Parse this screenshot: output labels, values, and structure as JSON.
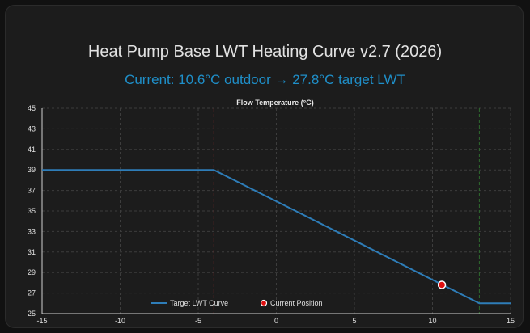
{
  "card": {
    "title": "Heat Pump Base LWT Heating Curve v2.7 (2026)",
    "subtitle": "Current: 10.6°C outdoor → 27.8°C target LWT"
  },
  "chart_data": {
    "type": "line",
    "title": "Flow Temperature (°C)",
    "xlabel": "",
    "ylabel": "",
    "xlim": [
      -15,
      15
    ],
    "ylim": [
      25,
      45
    ],
    "xticks": [
      -15,
      -10,
      -5,
      0,
      5,
      10,
      15
    ],
    "yticks": [
      25,
      27,
      29,
      31,
      33,
      35,
      37,
      39,
      41,
      43,
      45
    ],
    "grid": true,
    "series": [
      {
        "name": "Target LWT Curve",
        "color": "#2e7db8",
        "x": [
          -15,
          -4,
          13,
          15
        ],
        "y": [
          39,
          39,
          26,
          26
        ]
      }
    ],
    "points": [
      {
        "name": "Current Position",
        "x": 10.6,
        "y": 27.8,
        "color": "#e01010"
      }
    ],
    "reference_lines": [
      {
        "x": -4,
        "color": "#7a2b2b"
      },
      {
        "x": 13,
        "color": "#2e6b2e"
      }
    ],
    "legend": {
      "position": "bottom-center",
      "items": [
        "Target LWT Curve",
        "Current Position"
      ]
    }
  }
}
